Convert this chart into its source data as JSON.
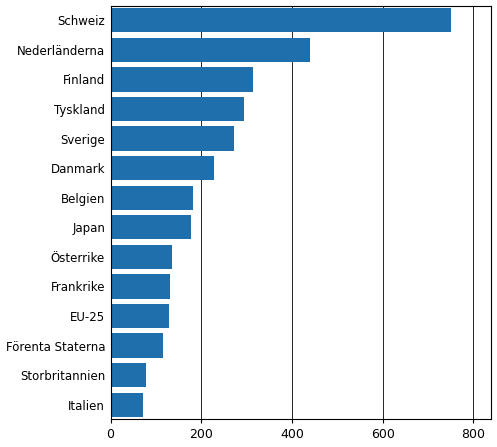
{
  "categories": [
    "Schweiz",
    "Nederländerna",
    "Finland",
    "Tyskland",
    "Sverige",
    "Danmark",
    "Belgien",
    "Japan",
    "Österrike",
    "Frankrike",
    "EU-25",
    "Förenta Staterna",
    "Storbritannien",
    "Italien"
  ],
  "values": [
    750,
    440,
    315,
    295,
    272,
    228,
    182,
    178,
    135,
    130,
    128,
    115,
    78,
    72
  ],
  "bar_color": "#1f6fad",
  "background_color": "#ffffff",
  "xlim": [
    0,
    840
  ],
  "xticks": [
    0,
    200,
    400,
    600,
    800
  ],
  "bar_height": 0.82,
  "figsize": [
    4.97,
    4.47
  ],
  "dpi": 100,
  "label_fontsize": 8.5,
  "tick_fontsize": 9
}
